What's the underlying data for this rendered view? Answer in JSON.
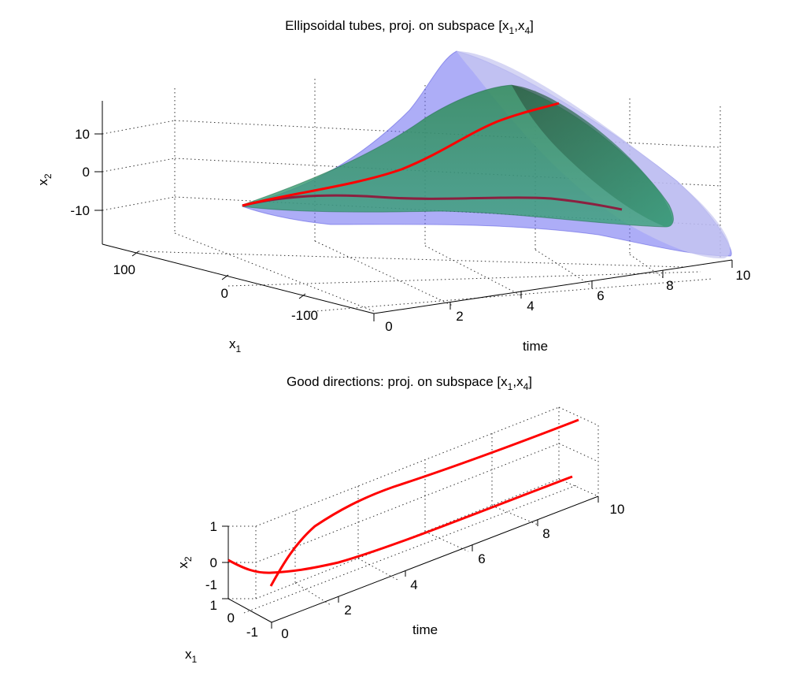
{
  "chart_data": [
    {
      "type": "3d-surface",
      "title_parts": [
        "Ellipsoidal tubes, proj. on subspace [x",
        "1",
        ",x",
        "4",
        "]"
      ],
      "xlabel": "time",
      "ylabel": {
        "base": "x",
        "sub": "1"
      },
      "zlabel": {
        "base": "x",
        "sub": "2"
      },
      "time_ticks": [
        "0",
        "2",
        "4",
        "6",
        "8",
        "10"
      ],
      "x1_ticks": [
        "100",
        "0",
        "-100"
      ],
      "x2_ticks": [
        "10",
        "0",
        "-10"
      ],
      "xlim": [
        0,
        10
      ],
      "ylim": [
        -150,
        150
      ],
      "zlim": [
        -20,
        20
      ],
      "grid": true,
      "series": [
        {
          "color": "#7070f0",
          "surface": "outer tube",
          "t": [
            0,
            2,
            4,
            6,
            8,
            10
          ],
          "x2_upper": [
            -9,
            -5,
            2,
            8,
            16,
            20
          ],
          "x2_lower": [
            -11,
            -14,
            -17,
            -19,
            -18,
            -16
          ]
        },
        {
          "color": "#2e8b57",
          "surface": "inner tube",
          "t": [
            0,
            2,
            4,
            6,
            8,
            10
          ],
          "x2_upper": [
            -9,
            -6,
            -1,
            6,
            13,
            17
          ],
          "x2_lower": [
            -11,
            -12,
            -14,
            -15,
            -14,
            -12
          ]
        },
        {
          "color": "#ff0000",
          "curve": "trajectory upper",
          "t": [
            0,
            2,
            4,
            6,
            8,
            10
          ],
          "x2": [
            -10,
            -8,
            -4,
            3,
            10,
            16
          ]
        },
        {
          "color": "#8b2040",
          "curve": "trajectory lower",
          "t": [
            0,
            2,
            4,
            6,
            8,
            10
          ],
          "x2": [
            -10,
            -11,
            -12,
            -12,
            -11,
            -10
          ]
        }
      ]
    },
    {
      "type": "3d-line",
      "title_parts": [
        "Good directions: proj. on subspace [x",
        "1",
        ",x",
        "4",
        "]"
      ],
      "xlabel": "time",
      "ylabel": {
        "base": "x",
        "sub": "1"
      },
      "zlabel": {
        "base": "x",
        "sub": "2"
      },
      "time_ticks": [
        "0",
        "2",
        "4",
        "6",
        "8",
        "10"
      ],
      "x1_ticks": [
        "1",
        "0",
        "-1"
      ],
      "x2_ticks": [
        "1",
        "0",
        "-1"
      ],
      "xlim": [
        0,
        10
      ],
      "ylim": [
        -1,
        1
      ],
      "zlim": [
        -1,
        1
      ],
      "grid": true,
      "series": [
        {
          "color": "#ff0000",
          "curve": "direction 1",
          "t": [
            0,
            0.5,
            1,
            2,
            4,
            6,
            8,
            10
          ],
          "x2": [
            -1,
            -0.4,
            0.0,
            0.35,
            0.6,
            0.75,
            0.85,
            0.9
          ]
        },
        {
          "color": "#ff0000",
          "curve": "direction 2",
          "t": [
            0,
            0.5,
            1,
            2,
            4,
            6,
            8,
            10
          ],
          "x2": [
            0,
            -0.5,
            -0.6,
            -0.45,
            -0.2,
            0.0,
            0.15,
            0.2
          ]
        }
      ]
    }
  ]
}
